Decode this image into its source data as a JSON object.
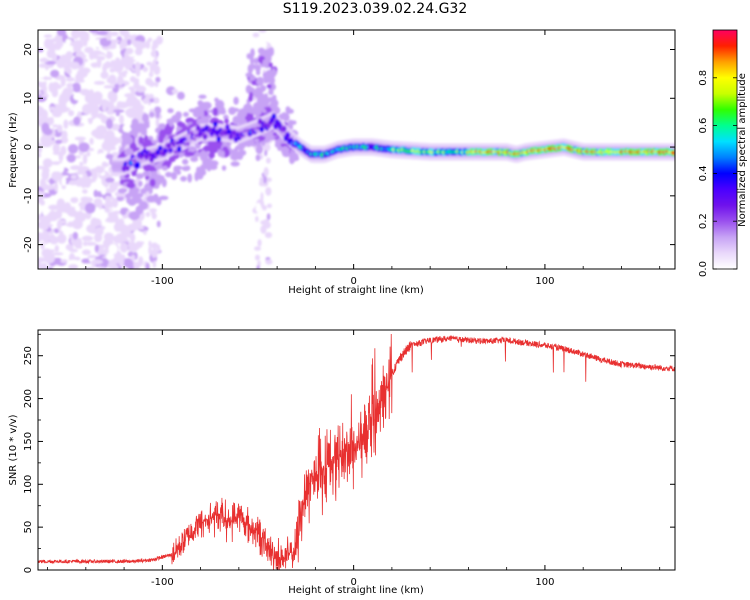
{
  "title": "S119.2023.039.02.24.G32",
  "colors": {
    "snr_line": "#e83030",
    "colormap": [
      "#ffffff",
      "#e9d8fb",
      "#c7a3f5",
      "#9a50ee",
      "#6f12ec",
      "#4a00ff",
      "#0000ff",
      "#0080ff",
      "#00e0ff",
      "#00ff90",
      "#30ff00",
      "#c8ff00",
      "#ffff00",
      "#ffa000",
      "#ff2000",
      "#ff0060"
    ]
  },
  "chart_data": [
    {
      "type": "heatmap",
      "title": "S119.2023.039.02.24.G32",
      "xlabel": "Height of straight line (km)",
      "ylabel": "Frequency (Hz)",
      "xlim": [
        -165,
        168
      ],
      "ylim": [
        -25,
        24
      ],
      "x_ticks": [
        -100,
        0,
        100
      ],
      "y_ticks": [
        20,
        10,
        0,
        -10,
        -20
      ],
      "grid": false,
      "ridge": {
        "x": [
          -120,
          -110,
          -100,
          -90,
          -80,
          -70,
          -60,
          -50,
          -42,
          -35,
          -28,
          -22,
          -15,
          -8,
          0,
          10,
          20,
          40,
          60,
          80,
          85,
          90,
          100,
          110,
          120,
          140,
          168
        ],
        "y": [
          -4,
          -2,
          -1,
          1,
          3,
          3,
          2.5,
          4,
          5.5,
          2.5,
          0,
          -1.5,
          -1.5,
          -0.5,
          0,
          0,
          -0.5,
          -1,
          -1,
          -1,
          -1.5,
          -1,
          -0.5,
          0,
          -1,
          -1,
          -1
        ]
      },
      "colorbar": {
        "label": "Normalized spectral amplitude",
        "range": [
          0,
          1
        ],
        "ticks": [
          0.0,
          0.2,
          0.4,
          0.6,
          0.8
        ]
      }
    },
    {
      "type": "line",
      "xlabel": "Height of straight line (km)",
      "ylabel": "SNR (10 * v/v)",
      "xlim": [
        -165,
        168
      ],
      "ylim": [
        0,
        280
      ],
      "x_ticks": [
        -100,
        0,
        100
      ],
      "y_ticks": [
        0,
        50,
        100,
        150,
        200,
        250
      ],
      "grid": false,
      "series": [
        {
          "color": "#e83030",
          "x": [
            -165,
            -150,
            -130,
            -115,
            -105,
            -95,
            -90,
            -85,
            -80,
            -75,
            -70,
            -65,
            -60,
            -55,
            -50,
            -45,
            -40,
            -35,
            -30,
            -28,
            -25,
            -20,
            -15,
            -10,
            -5,
            0,
            5,
            10,
            15,
            20,
            25,
            30,
            40,
            50,
            60,
            70,
            80,
            90,
            100,
            110,
            120,
            130,
            140,
            150,
            160,
            168
          ],
          "y": [
            10,
            10,
            10,
            10,
            12,
            18,
            30,
            45,
            55,
            60,
            65,
            55,
            65,
            50,
            45,
            25,
            15,
            15,
            25,
            70,
            95,
            110,
            120,
            130,
            135,
            140,
            155,
            170,
            195,
            230,
            250,
            262,
            268,
            270,
            268,
            267,
            268,
            265,
            262,
            258,
            252,
            245,
            240,
            238,
            236,
            235
          ]
        }
      ]
    }
  ]
}
